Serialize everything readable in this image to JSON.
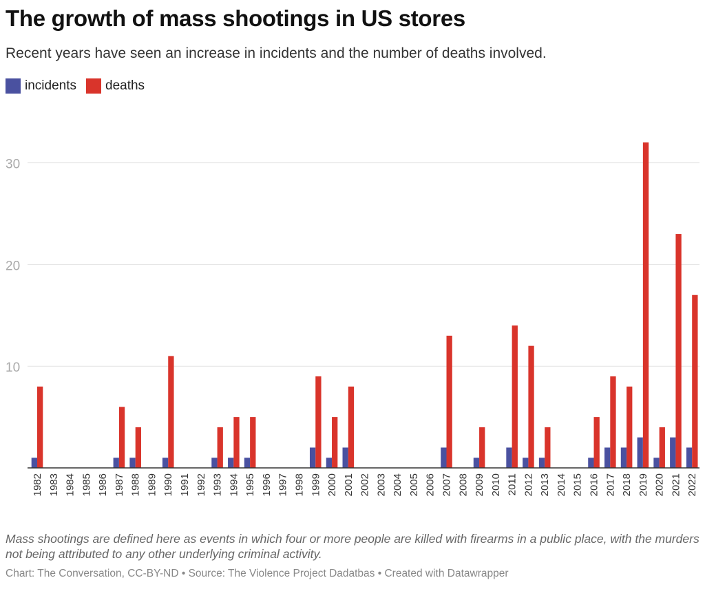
{
  "chart_data": {
    "type": "bar",
    "title": "The growth of mass shootings in US stores",
    "subtitle": "Recent years have seen an increase in incidents and the number of deaths involved.",
    "xlabel": "",
    "ylabel": "",
    "ylim": [
      0,
      32
    ],
    "yticks": [
      10,
      20,
      30
    ],
    "grid": true,
    "legend_position": "top-left",
    "categories": [
      "1982",
      "1983",
      "1984",
      "1985",
      "1986",
      "1987",
      "1988",
      "1989",
      "1990",
      "1991",
      "1992",
      "1993",
      "1994",
      "1995",
      "1996",
      "1997",
      "1998",
      "1999",
      "2000",
      "2001",
      "2002",
      "2003",
      "2004",
      "2005",
      "2006",
      "2007",
      "2008",
      "2009",
      "2010",
      "2011",
      "2012",
      "2013",
      "2014",
      "2015",
      "2016",
      "2017",
      "2018",
      "2019",
      "2020",
      "2021",
      "2022"
    ],
    "series": [
      {
        "name": "incidents",
        "color": "#4a51a0",
        "values": [
          1,
          0,
          0,
          0,
          0,
          1,
          1,
          0,
          1,
          0,
          0,
          1,
          1,
          1,
          0,
          0,
          0,
          2,
          1,
          2,
          0,
          0,
          0,
          0,
          0,
          2,
          0,
          1,
          0,
          2,
          1,
          1,
          0,
          0,
          1,
          2,
          2,
          3,
          1,
          3,
          2
        ]
      },
      {
        "name": "deaths",
        "color": "#d9342b",
        "values": [
          8,
          0,
          0,
          0,
          0,
          6,
          4,
          0,
          11,
          0,
          0,
          4,
          5,
          5,
          0,
          0,
          0,
          9,
          5,
          8,
          0,
          0,
          0,
          0,
          0,
          13,
          0,
          4,
          0,
          14,
          12,
          4,
          0,
          0,
          5,
          9,
          8,
          32,
          4,
          23,
          17
        ]
      }
    ],
    "notes": "Mass shootings are defined here as events in which four or more people are killed with firearms in a public place, with the murders not being attributed to any other underlying criminal activity.",
    "footer": "Chart: The Conversation, CC-BY-ND • Source: The Violence Project Dadatbas • Created with Datawrapper"
  }
}
